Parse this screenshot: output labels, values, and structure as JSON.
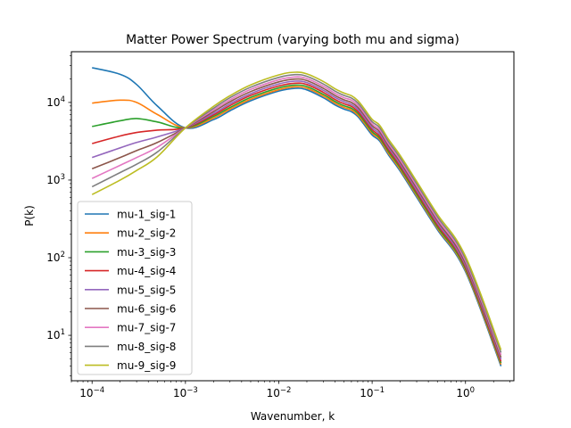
{
  "chart_data": {
    "type": "line",
    "title": "Matter Power Spectrum (varying both mu and sigma)",
    "xlabel": "Wavenumber, k",
    "ylabel": "P(k)",
    "xscale": "log",
    "yscale": "log",
    "xlim": [
      6e-05,
      3.3
    ],
    "ylim": [
      2.6,
      45000
    ],
    "grid": false,
    "legend_position": "lower-left",
    "x_ticks": [
      {
        "value": 0.0001,
        "base": "10",
        "exp": "−4"
      },
      {
        "value": 0.001,
        "base": "10",
        "exp": "−3"
      },
      {
        "value": 0.01,
        "base": "10",
        "exp": "−2"
      },
      {
        "value": 0.1,
        "base": "10",
        "exp": "−1"
      },
      {
        "value": 1,
        "base": "10",
        "exp": "0"
      }
    ],
    "y_ticks": [
      {
        "value": 10,
        "base": "10",
        "exp": "1"
      },
      {
        "value": 100,
        "base": "10",
        "exp": "2"
      },
      {
        "value": 1000,
        "base": "10",
        "exp": "3"
      },
      {
        "value": 10000,
        "base": "10",
        "exp": "4"
      }
    ],
    "x": [
      0.0001,
      0.0002,
      0.0003,
      0.0005,
      0.001,
      0.002,
      0.003,
      0.005,
      0.01,
      0.015,
      0.02,
      0.03,
      0.04,
      0.05,
      0.06,
      0.07,
      0.08,
      0.1,
      0.12,
      0.15,
      0.2,
      0.3,
      0.5,
      1,
      2.4
    ],
    "series": [
      {
        "name": "mu-1_sig-1",
        "color": "#1f77b4",
        "values": [
          28000,
          23000,
          17000,
          9000,
          4700,
          6000,
          7800,
          10500,
          14000,
          15200,
          14500,
          11500,
          9300,
          8200,
          7600,
          6600,
          5400,
          3800,
          3200,
          2100,
          1300,
          600,
          230,
          66,
          4.0
        ]
      },
      {
        "name": "mu-2_sig-2",
        "color": "#ff7f0e",
        "values": [
          9800,
          10700,
          10000,
          7000,
          4700,
          6300,
          8200,
          11000,
          14600,
          15900,
          15200,
          12100,
          9800,
          8600,
          8000,
          6900,
          5700,
          4000,
          3350,
          2200,
          1360,
          630,
          240,
          69,
          4.2
        ]
      },
      {
        "name": "mu-3_sig-3",
        "color": "#2ca02c",
        "values": [
          4900,
          5800,
          6200,
          5600,
          4700,
          6600,
          8600,
          11600,
          15400,
          16700,
          16000,
          12700,
          10300,
          9050,
          8400,
          7300,
          6000,
          4200,
          3500,
          2320,
          1430,
          660,
          250,
          72,
          4.4
        ]
      },
      {
        "name": "mu-4_sig-4",
        "color": "#d62728",
        "values": [
          2950,
          3700,
          4100,
          4400,
          4700,
          6900,
          9100,
          12300,
          16300,
          17700,
          17000,
          13500,
          10900,
          9600,
          8900,
          7700,
          6350,
          4450,
          3700,
          2450,
          1510,
          700,
          265,
          76,
          4.6
        ]
      },
      {
        "name": "mu-5_sig-5",
        "color": "#9467bd",
        "values": [
          1950,
          2600,
          3050,
          3600,
          4700,
          7200,
          9600,
          13000,
          17300,
          18800,
          18000,
          14300,
          11600,
          10200,
          9400,
          8200,
          6700,
          4700,
          3950,
          2600,
          1600,
          740,
          280,
          80,
          4.9
        ]
      },
      {
        "name": "mu-6_sig-6",
        "color": "#8c564b",
        "values": [
          1400,
          1950,
          2400,
          3050,
          4700,
          7600,
          10200,
          13800,
          18400,
          20000,
          19100,
          15200,
          12300,
          10800,
          10000,
          8700,
          7150,
          5000,
          4200,
          2750,
          1700,
          790,
          298,
          85,
          5.2
        ]
      },
      {
        "name": "mu-7_sig-7",
        "color": "#e377c2",
        "values": [
          1050,
          1550,
          1950,
          2650,
          4700,
          8000,
          10800,
          14700,
          19600,
          21300,
          20300,
          16200,
          13100,
          11500,
          10700,
          9250,
          7600,
          5300,
          4450,
          2930,
          1810,
          840,
          317,
          91,
          5.6
        ]
      },
      {
        "name": "mu-8_sig-8",
        "color": "#7f7f7f",
        "values": [
          820,
          1250,
          1600,
          2300,
          4700,
          8400,
          11500,
          15700,
          21000,
          22800,
          21700,
          17300,
          14000,
          12300,
          11400,
          9900,
          8100,
          5650,
          4750,
          3120,
          1930,
          900,
          338,
          97,
          6.0
        ]
      },
      {
        "name": "mu-9_sig-9",
        "color": "#bcbd22",
        "values": [
          650,
          1000,
          1330,
          2000,
          4700,
          8900,
          12200,
          16800,
          22600,
          24500,
          23300,
          18600,
          15000,
          13200,
          12200,
          10600,
          8700,
          6050,
          5100,
          3340,
          2070,
          960,
          362,
          104,
          6.5
        ]
      }
    ]
  }
}
